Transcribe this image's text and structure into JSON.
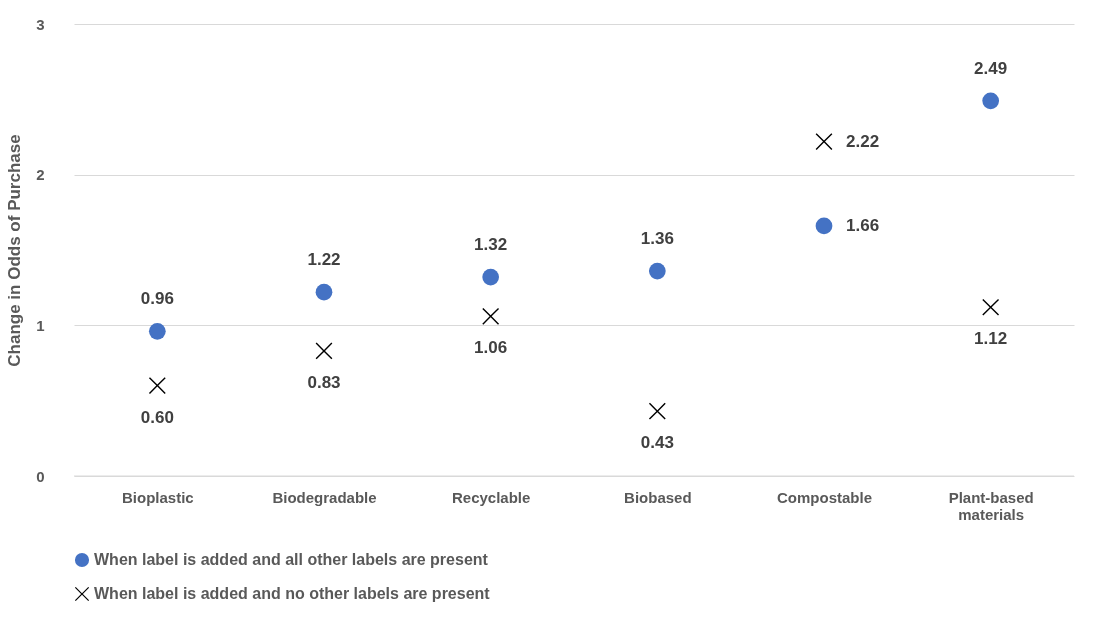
{
  "chart_data": {
    "type": "scatter",
    "ylabel": "Change in Odds of Purchase",
    "categories": [
      "Bioplastic",
      "Biodegradable",
      "Recyclable",
      "Biobased",
      "Compostable",
      "Plant-based materials"
    ],
    "series": [
      {
        "name": "When label is added and all other labels are present",
        "color": "#4472c4",
        "marker": "circle",
        "values": [
          0.96,
          1.22,
          1.32,
          1.36,
          1.66,
          2.49
        ],
        "value_labels": [
          "0.96",
          "1.22",
          "1.32",
          "1.36",
          "1.66",
          "2.49"
        ]
      },
      {
        "name": "When label is added and no other labels are present",
        "color": "#000000",
        "marker": "cross",
        "values": [
          0.6,
          0.83,
          1.06,
          0.43,
          2.22,
          1.12
        ],
        "value_labels": [
          "0.60",
          "0.83",
          "1.06",
          "0.43",
          "2.22",
          "1.12"
        ]
      }
    ],
    "ylim": [
      0,
      3
    ],
    "yticks": [
      0,
      1,
      2,
      3
    ],
    "grid": "y",
    "legend": "bottom"
  }
}
